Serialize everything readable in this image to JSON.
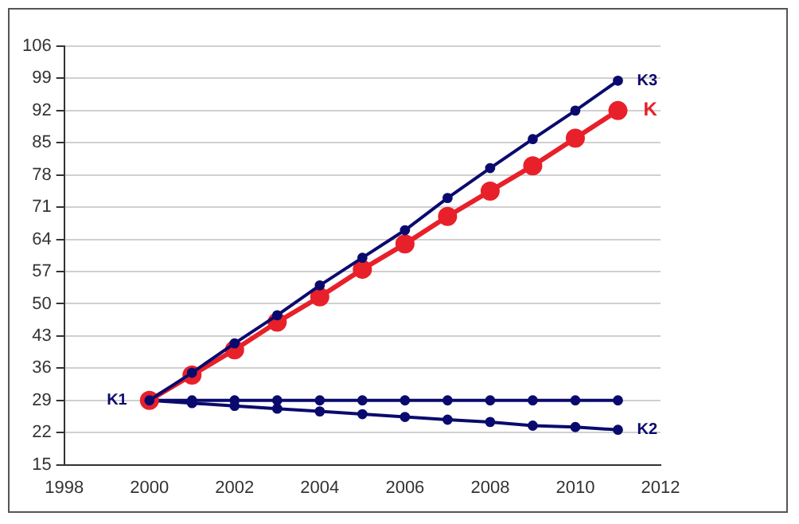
{
  "chart_data": {
    "type": "line",
    "x": [
      2000,
      2001,
      2002,
      2003,
      2004,
      2005,
      2006,
      2007,
      2008,
      2009,
      2010,
      2011
    ],
    "series": [
      {
        "name": "K3",
        "color": "#0a0a6e",
        "marker": "circle",
        "values": [
          29,
          35,
          41.4,
          47.5,
          54,
          60,
          66,
          73,
          79.5,
          85.8,
          92,
          98.5
        ]
      },
      {
        "name": "K",
        "color": "#e8202a",
        "marker": "circle",
        "values": [
          29,
          34.5,
          40,
          46,
          51.5,
          57.5,
          63,
          69,
          74.5,
          80,
          86,
          92
        ]
      },
      {
        "name": "K1",
        "color": "#0a0a6e",
        "marker": "circle",
        "values": [
          29,
          29,
          29,
          29,
          29,
          29,
          29,
          29,
          29,
          29,
          29,
          29
        ]
      },
      {
        "name": "K2",
        "color": "#0a0a6e",
        "marker": "circle",
        "values": [
          29,
          28.4,
          27.8,
          27.2,
          26.6,
          26,
          25.4,
          24.8,
          24.3,
          23.5,
          23.2,
          22.6
        ]
      }
    ],
    "xlim": [
      1998,
      2012
    ],
    "xticks": [
      1998,
      2000,
      2002,
      2004,
      2006,
      2008,
      2010,
      2012
    ],
    "ylim": [
      15,
      106
    ],
    "yticks": [
      15,
      22,
      29,
      36,
      43,
      50,
      57,
      64,
      71,
      78,
      85,
      92,
      99,
      106
    ],
    "grid": "y",
    "legend": false
  }
}
